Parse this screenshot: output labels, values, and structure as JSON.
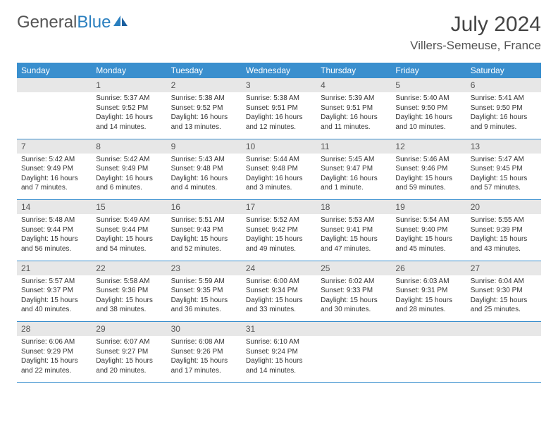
{
  "logo": {
    "text1": "General",
    "text2": "Blue"
  },
  "title": "July 2024",
  "location": "Villers-Semeuse, France",
  "colors": {
    "header_bg": "#3a8fce",
    "header_text": "#ffffff",
    "daynum_bg": "#e7e7e7",
    "row_divider": "#3a8fce",
    "body_text": "#333333",
    "title_text": "#444444"
  },
  "day_headers": [
    "Sunday",
    "Monday",
    "Tuesday",
    "Wednesday",
    "Thursday",
    "Friday",
    "Saturday"
  ],
  "weeks": [
    {
      "nums": [
        "",
        "1",
        "2",
        "3",
        "4",
        "5",
        "6"
      ],
      "cells": [
        null,
        {
          "sr": "5:37 AM",
          "ss": "9:52 PM",
          "dl": "16 hours and 14 minutes."
        },
        {
          "sr": "5:38 AM",
          "ss": "9:52 PM",
          "dl": "16 hours and 13 minutes."
        },
        {
          "sr": "5:38 AM",
          "ss": "9:51 PM",
          "dl": "16 hours and 12 minutes."
        },
        {
          "sr": "5:39 AM",
          "ss": "9:51 PM",
          "dl": "16 hours and 11 minutes."
        },
        {
          "sr": "5:40 AM",
          "ss": "9:50 PM",
          "dl": "16 hours and 10 minutes."
        },
        {
          "sr": "5:41 AM",
          "ss": "9:50 PM",
          "dl": "16 hours and 9 minutes."
        }
      ]
    },
    {
      "nums": [
        "7",
        "8",
        "9",
        "10",
        "11",
        "12",
        "13"
      ],
      "cells": [
        {
          "sr": "5:42 AM",
          "ss": "9:49 PM",
          "dl": "16 hours and 7 minutes."
        },
        {
          "sr": "5:42 AM",
          "ss": "9:49 PM",
          "dl": "16 hours and 6 minutes."
        },
        {
          "sr": "5:43 AM",
          "ss": "9:48 PM",
          "dl": "16 hours and 4 minutes."
        },
        {
          "sr": "5:44 AM",
          "ss": "9:48 PM",
          "dl": "16 hours and 3 minutes."
        },
        {
          "sr": "5:45 AM",
          "ss": "9:47 PM",
          "dl": "16 hours and 1 minute."
        },
        {
          "sr": "5:46 AM",
          "ss": "9:46 PM",
          "dl": "15 hours and 59 minutes."
        },
        {
          "sr": "5:47 AM",
          "ss": "9:45 PM",
          "dl": "15 hours and 57 minutes."
        }
      ]
    },
    {
      "nums": [
        "14",
        "15",
        "16",
        "17",
        "18",
        "19",
        "20"
      ],
      "cells": [
        {
          "sr": "5:48 AM",
          "ss": "9:44 PM",
          "dl": "15 hours and 56 minutes."
        },
        {
          "sr": "5:49 AM",
          "ss": "9:44 PM",
          "dl": "15 hours and 54 minutes."
        },
        {
          "sr": "5:51 AM",
          "ss": "9:43 PM",
          "dl": "15 hours and 52 minutes."
        },
        {
          "sr": "5:52 AM",
          "ss": "9:42 PM",
          "dl": "15 hours and 49 minutes."
        },
        {
          "sr": "5:53 AM",
          "ss": "9:41 PM",
          "dl": "15 hours and 47 minutes."
        },
        {
          "sr": "5:54 AM",
          "ss": "9:40 PM",
          "dl": "15 hours and 45 minutes."
        },
        {
          "sr": "5:55 AM",
          "ss": "9:39 PM",
          "dl": "15 hours and 43 minutes."
        }
      ]
    },
    {
      "nums": [
        "21",
        "22",
        "23",
        "24",
        "25",
        "26",
        "27"
      ],
      "cells": [
        {
          "sr": "5:57 AM",
          "ss": "9:37 PM",
          "dl": "15 hours and 40 minutes."
        },
        {
          "sr": "5:58 AM",
          "ss": "9:36 PM",
          "dl": "15 hours and 38 minutes."
        },
        {
          "sr": "5:59 AM",
          "ss": "9:35 PM",
          "dl": "15 hours and 36 minutes."
        },
        {
          "sr": "6:00 AM",
          "ss": "9:34 PM",
          "dl": "15 hours and 33 minutes."
        },
        {
          "sr": "6:02 AM",
          "ss": "9:33 PM",
          "dl": "15 hours and 30 minutes."
        },
        {
          "sr": "6:03 AM",
          "ss": "9:31 PM",
          "dl": "15 hours and 28 minutes."
        },
        {
          "sr": "6:04 AM",
          "ss": "9:30 PM",
          "dl": "15 hours and 25 minutes."
        }
      ]
    },
    {
      "nums": [
        "28",
        "29",
        "30",
        "31",
        "",
        "",
        ""
      ],
      "cells": [
        {
          "sr": "6:06 AM",
          "ss": "9:29 PM",
          "dl": "15 hours and 22 minutes."
        },
        {
          "sr": "6:07 AM",
          "ss": "9:27 PM",
          "dl": "15 hours and 20 minutes."
        },
        {
          "sr": "6:08 AM",
          "ss": "9:26 PM",
          "dl": "15 hours and 17 minutes."
        },
        {
          "sr": "6:10 AM",
          "ss": "9:24 PM",
          "dl": "15 hours and 14 minutes."
        },
        null,
        null,
        null
      ]
    }
  ]
}
